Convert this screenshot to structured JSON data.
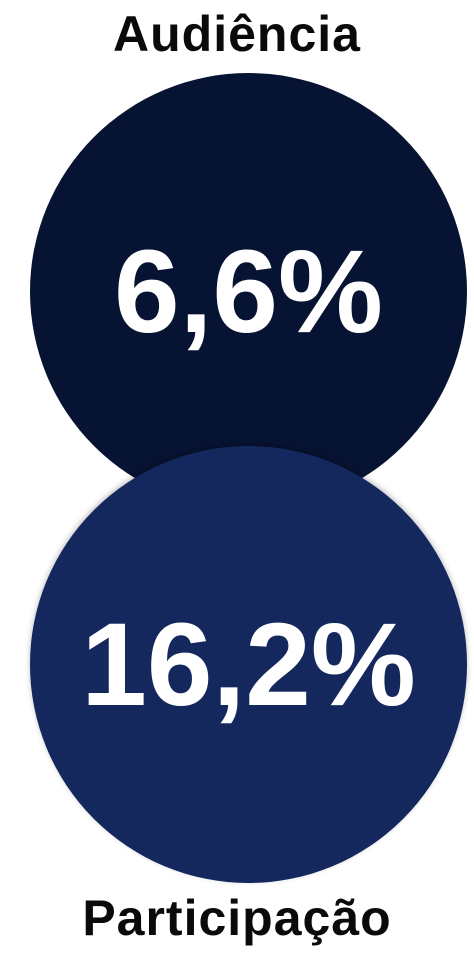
{
  "audience": {
    "label": "Audiência",
    "value": "6,6%",
    "color": "#071333"
  },
  "share": {
    "label": "Participação",
    "value": "16,2%",
    "color": "#14285e"
  }
}
